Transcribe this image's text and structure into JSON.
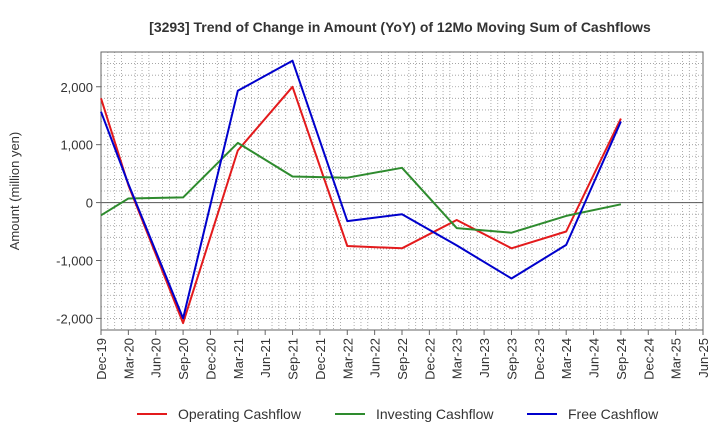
{
  "chart_data": {
    "type": "line",
    "title": "[3293]  Trend of Change in Amount (YoY) of 12Mo Moving Sum of Cashflows",
    "xlabel": "",
    "ylabel": "Amount (million yen)",
    "ylim": [
      -2200,
      2600
    ],
    "yticks": [
      2000,
      1000,
      0,
      -1000,
      -2000
    ],
    "ytick_labels": [
      "2,000",
      "1,000",
      "0",
      "-1,000",
      "-2,000"
    ],
    "categories": [
      "Dec-19",
      "Mar-20",
      "Jun-20",
      "Sep-20",
      "Dec-20",
      "Mar-21",
      "Jun-21",
      "Sep-21",
      "Dec-21",
      "Mar-22",
      "Jun-22",
      "Sep-22",
      "Dec-22",
      "Mar-23",
      "Jun-23",
      "Sep-23",
      "Dec-23",
      "Mar-24",
      "Jun-24",
      "Sep-24",
      "Dec-24",
      "Mar-25"
    ],
    "tick_labels": [
      "Dec-19",
      "Mar-20",
      "Jun-20",
      "Sep-20",
      "Dec-20",
      "Mar-21",
      "Jun-21",
      "Sep-21",
      "Dec-21",
      "Mar-22",
      "Jun-22",
      "Sep-22",
      "Dec-22",
      "Mar-23",
      "Jun-23",
      "Sep-23",
      "Dec-23",
      "Mar-24",
      "Jun-24",
      "Sep-24",
      "Dec-24",
      "Mar-25",
      "Jun-25"
    ],
    "grid": true,
    "legend_position": "bottom",
    "series": [
      {
        "name": "Operating Cashflow",
        "color": "#e31a1c",
        "points": [
          [
            0,
            1800
          ],
          [
            1,
            300
          ],
          [
            3,
            -2080
          ],
          [
            5,
            900
          ],
          [
            7,
            2000
          ],
          [
            9,
            -750
          ],
          [
            11,
            -790
          ],
          [
            13,
            -300
          ],
          [
            15,
            -790
          ],
          [
            17,
            -500
          ],
          [
            19,
            1450
          ]
        ]
      },
      {
        "name": "Investing Cashflow",
        "color": "#2e8b2e",
        "points": [
          [
            0,
            -220
          ],
          [
            1,
            70
          ],
          [
            3,
            90
          ],
          [
            5,
            1030
          ],
          [
            7,
            450
          ],
          [
            9,
            430
          ],
          [
            11,
            600
          ],
          [
            13,
            -440
          ],
          [
            15,
            -520
          ],
          [
            17,
            -230
          ],
          [
            19,
            -30
          ]
        ]
      },
      {
        "name": "Free Cashflow",
        "color": "#0000cc",
        "points": [
          [
            0,
            1570
          ],
          [
            1,
            320
          ],
          [
            3,
            -2000
          ],
          [
            5,
            1930
          ],
          [
            7,
            2450
          ],
          [
            9,
            -320
          ],
          [
            11,
            -200
          ],
          [
            13,
            -740
          ],
          [
            15,
            -1310
          ],
          [
            17,
            -730
          ],
          [
            19,
            1400
          ]
        ]
      }
    ]
  }
}
